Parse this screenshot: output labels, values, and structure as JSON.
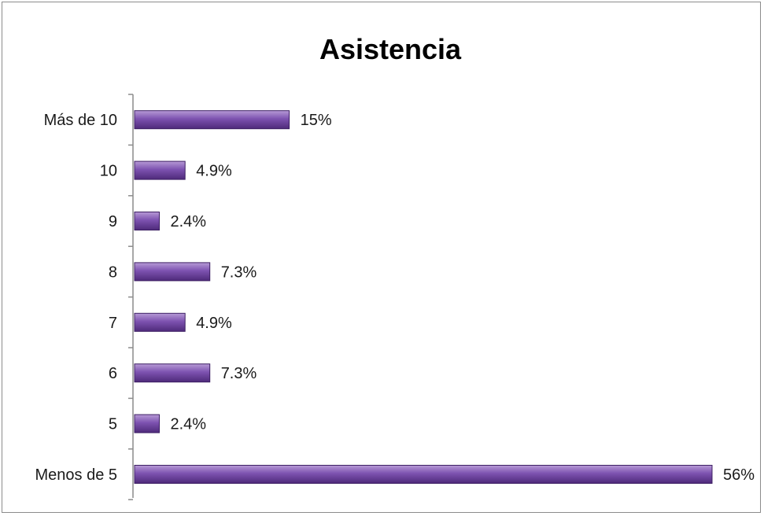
{
  "chart_data": {
    "type": "bar",
    "orientation": "horizontal",
    "title": "Asistencia",
    "categories": [
      "Más de 10",
      "10",
      "9",
      "8",
      "7",
      "6",
      "5",
      "Menos de 5"
    ],
    "values": [
      15,
      4.9,
      2.4,
      7.3,
      4.9,
      7.3,
      2.4,
      56
    ],
    "value_labels": [
      "15%",
      "4.9%",
      "2.4%",
      "7.3%",
      "4.9%",
      "7.3%",
      "2.4%",
      "56%"
    ],
    "unit": "%",
    "xlabel": "",
    "ylabel": "",
    "xlim": [
      0,
      56
    ],
    "grid": false,
    "legend": "none",
    "colors": {
      "bar_fill_top": "#b79ad6",
      "bar_fill_mid": "#7d52b0",
      "bar_fill_bottom": "#4e2a7a",
      "bar_stroke": "#3d1f63",
      "axis": "#8c8c8c"
    }
  }
}
